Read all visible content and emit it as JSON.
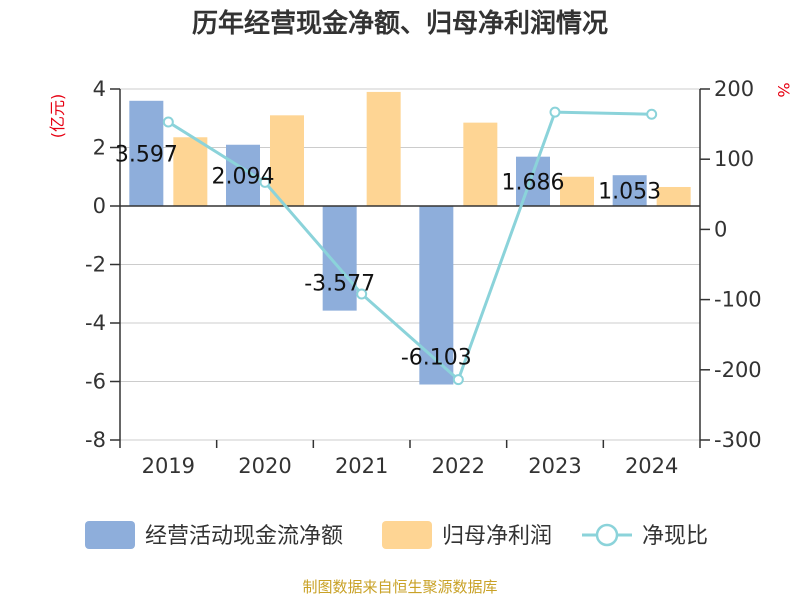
{
  "chart_data": {
    "type": "bar",
    "title": "历年经营现金净额、归母净利润情况",
    "categories": [
      "2019",
      "2020",
      "2021",
      "2022",
      "2023",
      "2024"
    ],
    "left_axis": {
      "label": "(亿元)",
      "ylim": [
        -8,
        4
      ],
      "ticks": [
        4,
        2,
        0,
        -2,
        -4,
        -6,
        -8
      ]
    },
    "right_axis": {
      "label": "%",
      "ylim": [
        -300,
        200
      ],
      "ticks": [
        200,
        100,
        0,
        -100,
        -200,
        -300
      ]
    },
    "series": [
      {
        "name": "经营活动现金流净额",
        "type": "bar",
        "axis": "left",
        "color": "#8eaedb",
        "values": [
          3.597,
          2.094,
          -3.577,
          -6.103,
          1.686,
          1.053
        ],
        "labels": [
          "3.597",
          "2.094",
          "-3.577",
          "-6.103",
          "1.686",
          "1.053"
        ]
      },
      {
        "name": "归母净利润",
        "type": "bar",
        "axis": "left",
        "color": "#fed594",
        "values": [
          2.35,
          3.1,
          3.9,
          2.85,
          1.0,
          0.65
        ]
      },
      {
        "name": "净现比",
        "type": "line",
        "axis": "right",
        "color": "#8bd3da",
        "values": [
          153,
          67,
          -92,
          -214,
          167,
          164
        ]
      }
    ],
    "grid": true,
    "legend": "bottom"
  },
  "source": "制图数据来自恒生聚源数据库"
}
